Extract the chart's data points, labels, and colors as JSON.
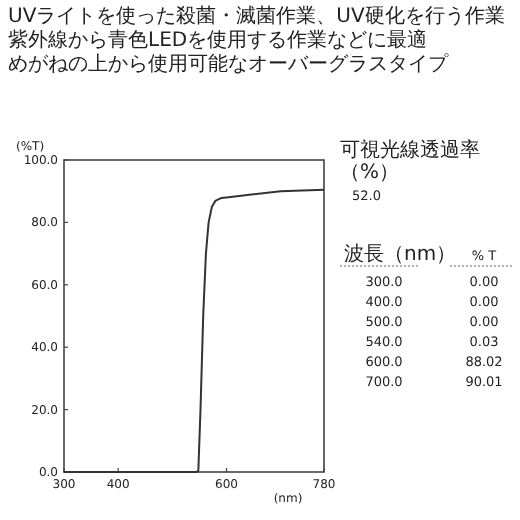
{
  "chart_data": [
    {
      "type": "line",
      "title": "UVライトを使った殺菌・滅菌作業、UV硬化を行う作業",
      "subtitle": "紫外線から青色LEDを使用する作業などに最適",
      "annotations": [
        "めがねの上から使用可能なオーバーグラスタイプ"
      ],
      "xlabel": "(nm)",
      "ylabel": "(%T)",
      "x": [
        300,
        545,
        548,
        552,
        557,
        562,
        567,
        573,
        580,
        590,
        600,
        650,
        700,
        780
      ],
      "series": [
        {
          "color": "#333333",
          "values": [
            0,
            0,
            0.5,
            20,
            50,
            70,
            80,
            85,
            87,
            87.8,
            88,
            89,
            90,
            90.5
          ]
        }
      ],
      "xlim": [
        300,
        780
      ],
      "xticks": [
        300,
        400,
        600,
        780
      ],
      "ylim": [
        0,
        100
      ],
      "yticks": [
        {
          "value": 0,
          "label": "0.0"
        },
        {
          "value": 20,
          "label": "20.0"
        },
        {
          "value": 40,
          "label": "40.0"
        },
        {
          "value": 60,
          "label": "60.0"
        },
        {
          "value": 80,
          "label": "80.0"
        },
        {
          "value": 100,
          "label": "100.0"
        }
      ],
      "grid": false
    },
    {
      "type": "other",
      "annotations": [
        "可視光線透過率（%）",
        "52.0"
      ],
      "xlabel": "波長（nm）",
      "ylabel": "% T",
      "categories": [
        "300.0",
        "400.0",
        "500.0",
        "540.0",
        "600.0",
        "700.0"
      ],
      "value_labels": [
        "0.00",
        "0.00",
        "0.00",
        "0.03",
        "88.02",
        "90.01"
      ]
    }
  ]
}
